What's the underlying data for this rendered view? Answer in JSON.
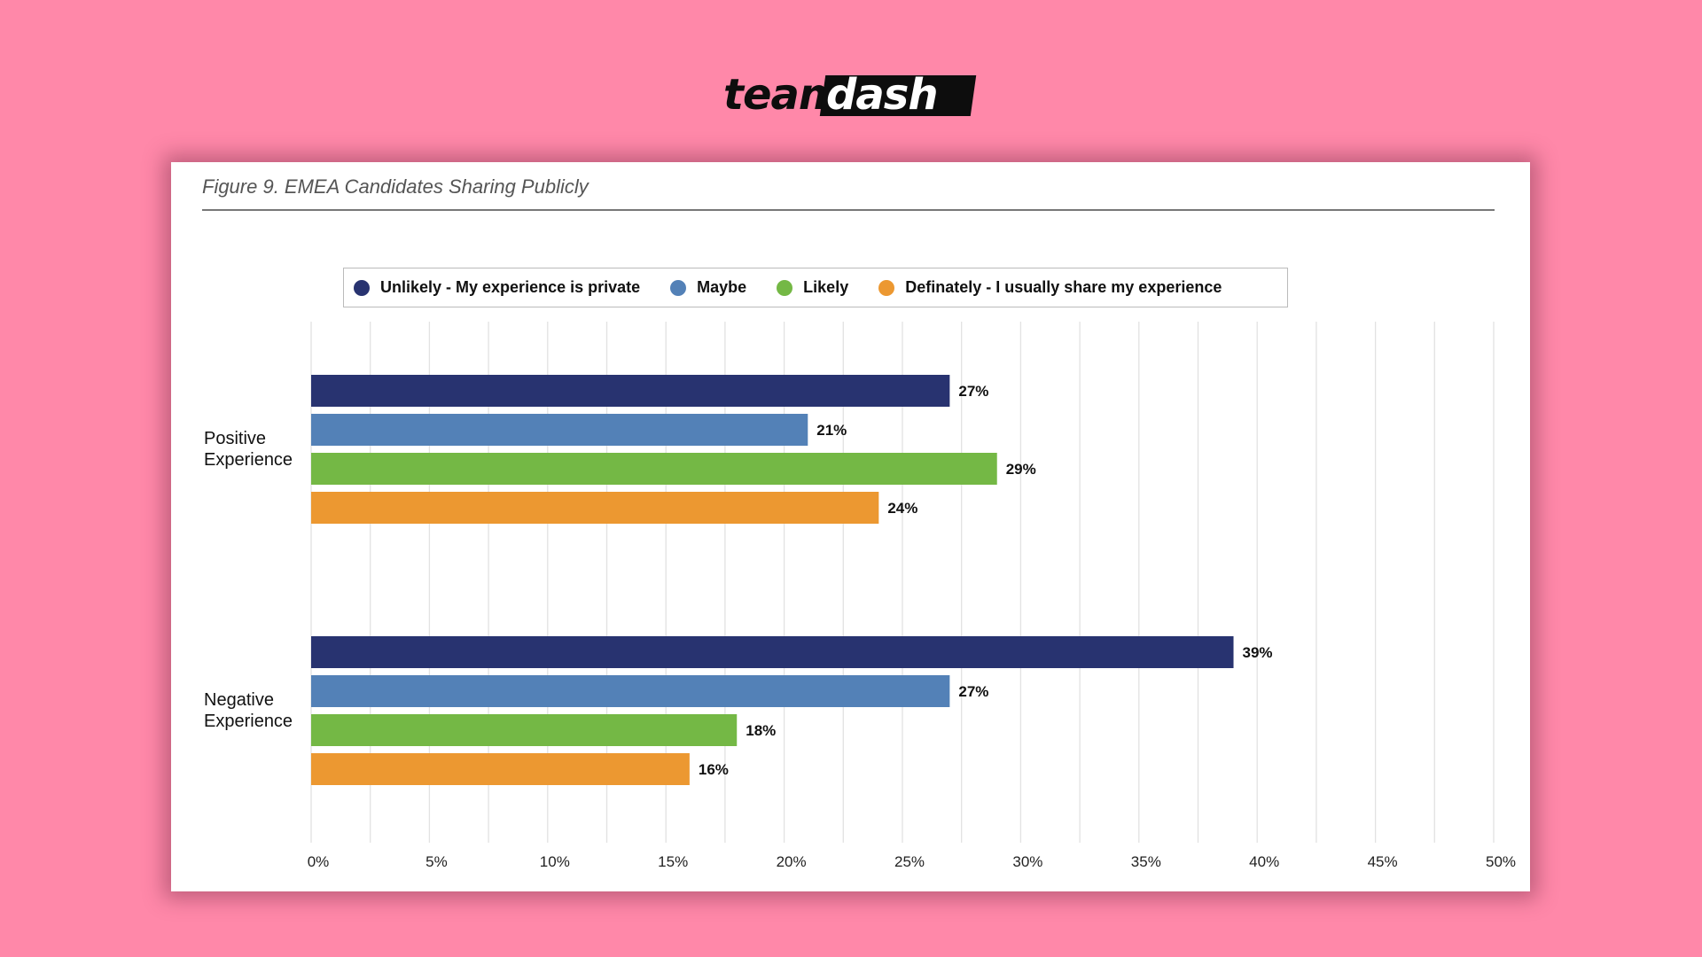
{
  "page": {
    "background": "#ff88a9"
  },
  "logo": {
    "part1": "team",
    "part2": "dash",
    "color_dark": "#0d0d0d",
    "color_light": "#ffffff"
  },
  "chart_data": {
    "type": "bar",
    "orientation": "horizontal",
    "title": "Figure 9. EMEA Candidates Sharing Publicly",
    "categories": [
      {
        "line1": "Positive",
        "line2": "Experience"
      },
      {
        "line1": "Negative",
        "line2": "Experience"
      }
    ],
    "series": [
      {
        "name": "Unlikely - My experience is private",
        "color": "#283370",
        "values": [
          27,
          39
        ]
      },
      {
        "name": "Maybe",
        "color": "#5381b7",
        "values": [
          21,
          27
        ]
      },
      {
        "name": "Likely",
        "color": "#74b845",
        "values": [
          29,
          18
        ]
      },
      {
        "name": "Definately - I usually share my experience",
        "color": "#ec9831",
        "values": [
          24,
          16
        ]
      }
    ],
    "xlim": [
      0,
      50
    ],
    "xticks": [
      0,
      5,
      10,
      15,
      20,
      25,
      30,
      35,
      40,
      45,
      50
    ],
    "value_suffix": "%",
    "grid": true,
    "legend_position": "top"
  }
}
